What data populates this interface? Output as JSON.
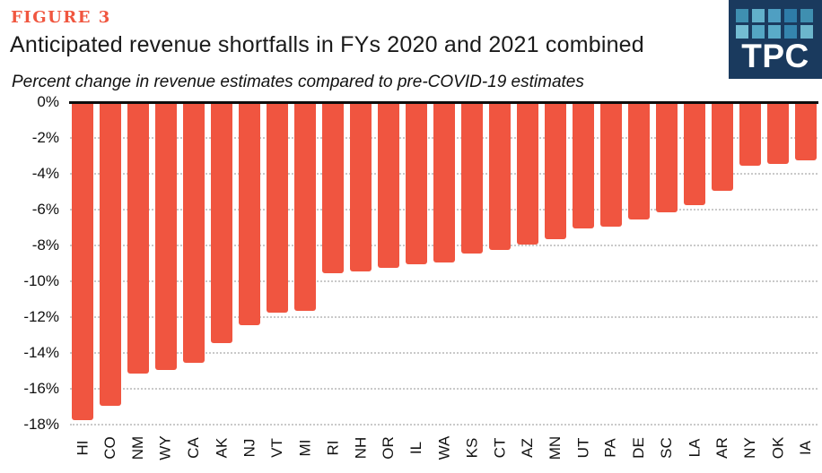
{
  "figure_label": "FIGURE 3",
  "title": "Anticipated revenue shortfalls in FYs 2020 and 2021 combined",
  "subtitle": "Percent change in revenue estimates compared to pre-COVID-19 estimates",
  "logo": {
    "text": "TPC",
    "bg_color": "#1a3a5e",
    "squares": [
      [
        "#3f8fb0",
        "#62b0ca",
        "#4f9fc2",
        "#2e7ca8",
        "#3f8fb0"
      ],
      [
        "#74bcd2",
        "#54a6c4",
        "#5aabc8",
        "#3585ae",
        "#6cb6cc"
      ]
    ]
  },
  "chart_data": {
    "type": "bar",
    "title": "Anticipated revenue shortfalls in FYs 2020 and 2021 combined",
    "subtitle": "Percent change in revenue estimates compared to pre-COVID-19 estimates",
    "categories": [
      "HI",
      "CO",
      "NM",
      "WY",
      "CA",
      "AK",
      "NJ",
      "VT",
      "MI",
      "RI",
      "NH",
      "OR",
      "IL",
      "WA",
      "KS",
      "CT",
      "AZ",
      "MN",
      "UT",
      "PA",
      "DE",
      "SC",
      "LA",
      "AR",
      "NY",
      "OK",
      "IA"
    ],
    "values": [
      -17.7,
      -16.9,
      -15.1,
      -14.9,
      -14.5,
      -13.4,
      -12.4,
      -11.7,
      -11.6,
      -9.5,
      -9.4,
      -9.2,
      -9.0,
      -8.9,
      -8.4,
      -8.2,
      -7.9,
      -7.6,
      -7.0,
      -6.9,
      -6.5,
      -6.1,
      -5.7,
      -4.9,
      -3.5,
      -3.4,
      -3.2
    ],
    "unit": "%",
    "y_ticks": [
      "0%",
      "-2%",
      "-4%",
      "-6%",
      "-8%",
      "-10%",
      "-12%",
      "-14%",
      "-16%",
      "-18%"
    ],
    "ylim": [
      -18,
      0
    ],
    "bar_color": "#f05540",
    "grid": "dotted horizontal gridlines every 2%",
    "zero_axis_color": "#0d0d0d",
    "legend": "none"
  }
}
